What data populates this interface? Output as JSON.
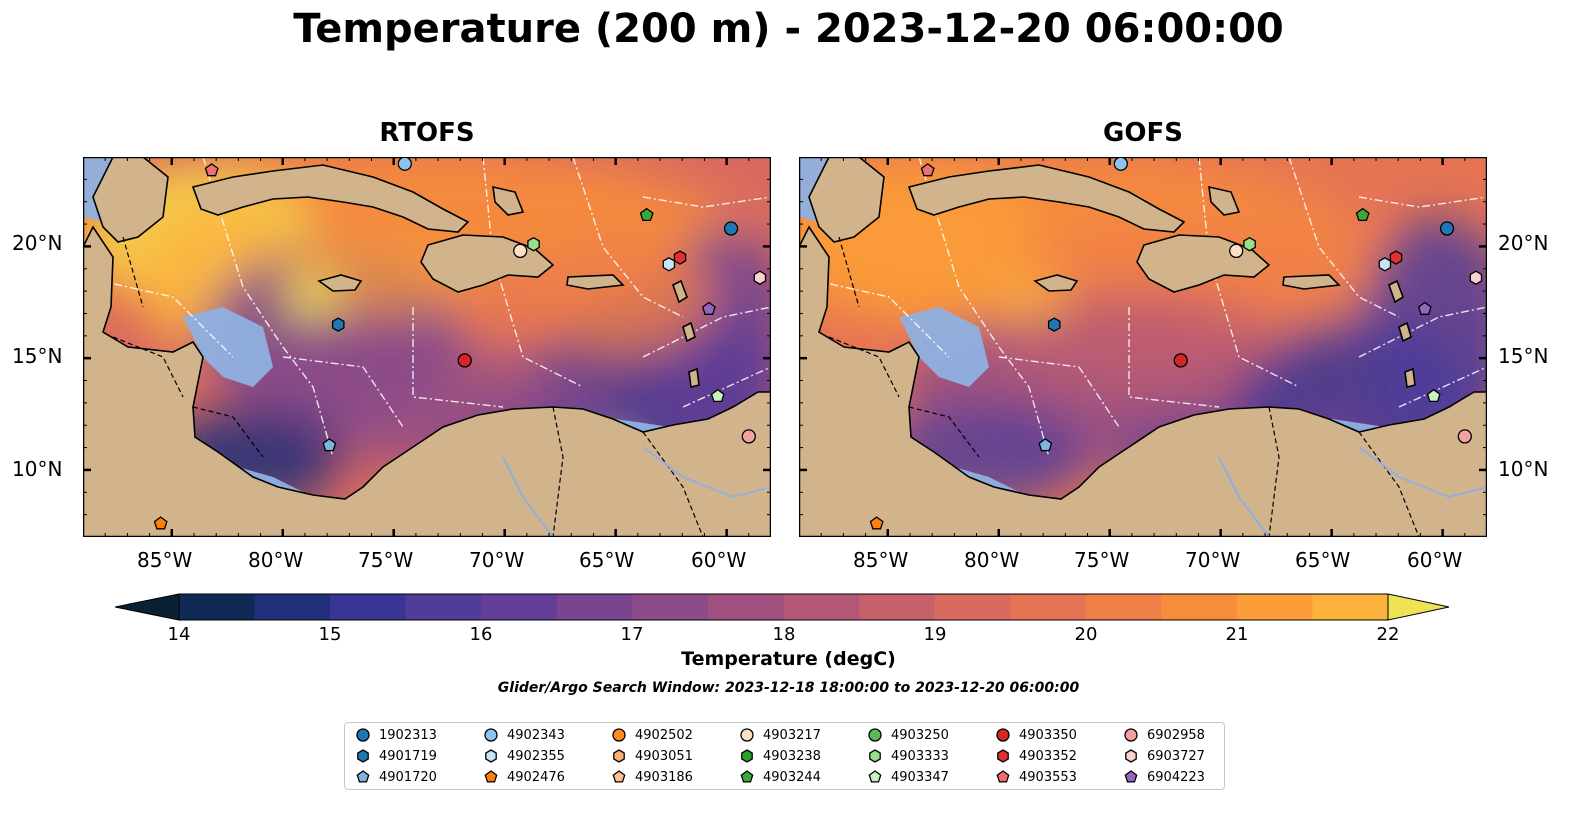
{
  "figure": {
    "title": "Temperature (200 m) - 2023-12-20 06:00:00",
    "panels": [
      {
        "title": "RTOFS"
      },
      {
        "title": "GOFS"
      }
    ]
  },
  "map": {
    "lon_range": [
      -89,
      -58
    ],
    "lat_range": [
      7,
      24
    ],
    "lon_ticks": [
      "85°W",
      "80°W",
      "75°W",
      "70°W",
      "65°W",
      "60°W"
    ],
    "lon_tick_values": [
      -85,
      -80,
      -75,
      -70,
      -65,
      -60
    ],
    "lat_ticks": [
      "20°N",
      "15°N",
      "10°N"
    ],
    "lat_tick_values": [
      20,
      15,
      10
    ],
    "colors": {
      "land": "#d2b48c",
      "shelf": "#8fb0e0"
    }
  },
  "colorbar": {
    "label": "Temperature (degC)",
    "ticks": [
      "14",
      "15",
      "16",
      "17",
      "18",
      "19",
      "20",
      "21",
      "22"
    ],
    "min": 14,
    "max": 22,
    "step": 0.5,
    "colors": [
      "#0a2135",
      "#0f2b55",
      "#1f2f7a",
      "#3a3594",
      "#503d9a",
      "#633f97",
      "#7a4491",
      "#8d4b89",
      "#a1517f",
      "#b55877",
      "#c8606c",
      "#d96a5f",
      "#e67454",
      "#f07f47",
      "#f78d3c",
      "#fb9e38",
      "#fcb23d",
      "#f9c746",
      "#f0e254"
    ]
  },
  "search_window": "Glider/Argo Search Window: 2023-12-18 18:00:00 to 2023-12-20 06:00:00",
  "legend": {
    "items": [
      {
        "label": "1902313",
        "marker": "circle",
        "color": "#1f77b4"
      },
      {
        "label": "4901719",
        "marker": "hexagon",
        "color": "#1f77b4"
      },
      {
        "label": "4901720",
        "marker": "pentagon",
        "color": "#7fb3e0"
      },
      {
        "label": "4902343",
        "marker": "circle",
        "color": "#8cc4f0"
      },
      {
        "label": "4902355",
        "marker": "hexagon",
        "color": "#c6e4f7"
      },
      {
        "label": "4902476",
        "marker": "pentagon",
        "color": "#ff7f0e"
      },
      {
        "label": "4902502",
        "marker": "circle",
        "color": "#ff8c1a"
      },
      {
        "label": "4903051",
        "marker": "hexagon",
        "color": "#ffb070"
      },
      {
        "label": "4903186",
        "marker": "pentagon",
        "color": "#ffc090"
      },
      {
        "label": "4903217",
        "marker": "circle",
        "color": "#fde0c8"
      },
      {
        "label": "4903238",
        "marker": "hexagon",
        "color": "#2ca02c"
      },
      {
        "label": "4903244",
        "marker": "pentagon",
        "color": "#3aa83a"
      },
      {
        "label": "4903250",
        "marker": "circle",
        "color": "#5cb85c"
      },
      {
        "label": "4903333",
        "marker": "hexagon",
        "color": "#98df8a"
      },
      {
        "label": "4903347",
        "marker": "pentagon",
        "color": "#c8f0c0"
      },
      {
        "label": "4903350",
        "marker": "circle",
        "color": "#d62728"
      },
      {
        "label": "4903352",
        "marker": "hexagon",
        "color": "#e03030"
      },
      {
        "label": "4903553",
        "marker": "pentagon",
        "color": "#f07070"
      },
      {
        "label": "6902958",
        "marker": "circle",
        "color": "#f4a0a0"
      },
      {
        "label": "6903727",
        "marker": "hexagon",
        "color": "#fbd0d0"
      },
      {
        "label": "6904223",
        "marker": "pentagon",
        "color": "#9467bd"
      }
    ]
  },
  "floats": [
    {
      "id": "1902313",
      "lon": -59.8,
      "lat": 20.8
    },
    {
      "id": "6902958",
      "lon": -59.0,
      "lat": 11.5
    },
    {
      "id": "6903727",
      "lon": -58.5,
      "lat": 18.6
    },
    {
      "id": "6904223",
      "lon": -60.8,
      "lat": 17.2
    },
    {
      "id": "4903347",
      "lon": -60.4,
      "lat": 13.3
    },
    {
      "id": "4903244",
      "lon": -63.6,
      "lat": 21.4
    },
    {
      "id": "4903352",
      "lon": -62.1,
      "lat": 19.5
    },
    {
      "id": "4902355",
      "lon": -62.6,
      "lat": 19.2
    },
    {
      "id": "4903333",
      "lon": -68.7,
      "lat": 20.1
    },
    {
      "id": "4903217",
      "lon": -69.3,
      "lat": 19.8
    },
    {
      "id": "4903350",
      "lon": -71.8,
      "lat": 14.9
    },
    {
      "id": "4901719",
      "lon": -77.5,
      "lat": 16.5
    },
    {
      "id": "4901720",
      "lon": -77.9,
      "lat": 11.1
    },
    {
      "id": "4902476",
      "lon": -85.5,
      "lat": 7.6
    },
    {
      "id": "4903553",
      "lon": -83.2,
      "lat": 23.4
    },
    {
      "id": "4902343",
      "lon": -74.5,
      "lat": 23.7
    }
  ]
}
